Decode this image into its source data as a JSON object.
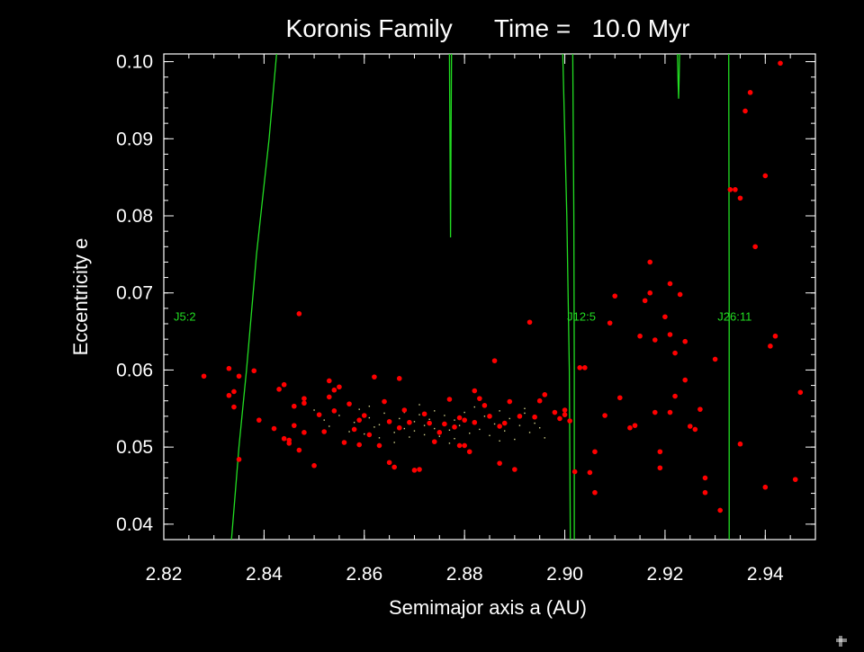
{
  "chart_data": {
    "type": "scatter",
    "title": "Koronis Family      Time =   10.0 Myr",
    "xlabel": "Semimajor axis a (AU)",
    "ylabel": "Eccentricity e",
    "xlim": [
      2.82,
      2.95
    ],
    "ylim": [
      0.038,
      0.101
    ],
    "xticks": [
      2.82,
      2.84,
      2.86,
      2.88,
      2.9,
      2.92,
      2.94
    ],
    "xtick_labels": [
      "2.82",
      "2.84",
      "2.86",
      "2.88",
      "2.90",
      "2.92",
      "2.94"
    ],
    "yticks": [
      0.04,
      0.05,
      0.06,
      0.07,
      0.08,
      0.09,
      0.1
    ],
    "ytick_labels": [
      "0.04",
      "0.05",
      "0.06",
      "0.07",
      "0.08",
      "0.09",
      "0.10"
    ],
    "grid": false,
    "colors": {
      "background": "#000000",
      "axes": "#ffffff",
      "points": "#ff0000",
      "cloud": "#d2d28c",
      "resonance": "#22dd22"
    },
    "series": [
      {
        "marker": "red-dot",
        "points": [
          [
            2.828,
            0.0592
          ],
          [
            2.833,
            0.0602
          ],
          [
            2.833,
            0.0567
          ],
          [
            2.834,
            0.0572
          ],
          [
            2.834,
            0.0552
          ],
          [
            2.835,
            0.0592
          ],
          [
            2.835,
            0.0484
          ],
          [
            2.838,
            0.0599
          ],
          [
            2.839,
            0.0535
          ],
          [
            2.842,
            0.0524
          ],
          [
            2.843,
            0.0575
          ],
          [
            2.844,
            0.0581
          ],
          [
            2.844,
            0.0511
          ],
          [
            2.845,
            0.0505
          ],
          [
            2.845,
            0.0509
          ],
          [
            2.846,
            0.0553
          ],
          [
            2.846,
            0.0528
          ],
          [
            2.847,
            0.0496
          ],
          [
            2.848,
            0.0557
          ],
          [
            2.848,
            0.0563
          ],
          [
            2.848,
            0.0519
          ],
          [
            2.847,
            0.0673
          ],
          [
            2.85,
            0.0476
          ],
          [
            2.851,
            0.0542
          ],
          [
            2.852,
            0.052
          ],
          [
            2.853,
            0.0586
          ],
          [
            2.853,
            0.0565
          ],
          [
            2.854,
            0.0574
          ],
          [
            2.854,
            0.0547
          ],
          [
            2.855,
            0.0578
          ],
          [
            2.856,
            0.0506
          ],
          [
            2.857,
            0.0556
          ],
          [
            2.858,
            0.0523
          ],
          [
            2.859,
            0.0503
          ],
          [
            2.859,
            0.0535
          ],
          [
            2.86,
            0.0541
          ],
          [
            2.861,
            0.0516
          ],
          [
            2.862,
            0.0591
          ],
          [
            2.863,
            0.0502
          ],
          [
            2.864,
            0.0559
          ],
          [
            2.865,
            0.0533
          ],
          [
            2.865,
            0.048
          ],
          [
            2.866,
            0.0474
          ],
          [
            2.867,
            0.0525
          ],
          [
            2.867,
            0.0589
          ],
          [
            2.868,
            0.0548
          ],
          [
            2.869,
            0.0532
          ],
          [
            2.87,
            0.047
          ],
          [
            2.871,
            0.0471
          ],
          [
            2.872,
            0.0543
          ],
          [
            2.873,
            0.0531
          ],
          [
            2.874,
            0.0507
          ],
          [
            2.875,
            0.0519
          ],
          [
            2.876,
            0.053
          ],
          [
            2.877,
            0.0562
          ],
          [
            2.878,
            0.0526
          ],
          [
            2.879,
            0.0502
          ],
          [
            2.879,
            0.0538
          ],
          [
            2.88,
            0.0502
          ],
          [
            2.88,
            0.0535
          ],
          [
            2.881,
            0.0494
          ],
          [
            2.882,
            0.0573
          ],
          [
            2.882,
            0.0532
          ],
          [
            2.883,
            0.0563
          ],
          [
            2.884,
            0.0554
          ],
          [
            2.885,
            0.054
          ],
          [
            2.886,
            0.0612
          ],
          [
            2.887,
            0.0527
          ],
          [
            2.887,
            0.0479
          ],
          [
            2.888,
            0.0531
          ],
          [
            2.889,
            0.0559
          ],
          [
            2.89,
            0.0471
          ],
          [
            2.891,
            0.054
          ],
          [
            2.893,
            0.0662
          ],
          [
            2.894,
            0.0539
          ],
          [
            2.895,
            0.056
          ],
          [
            2.896,
            0.0568
          ],
          [
            2.898,
            0.0545
          ],
          [
            2.899,
            0.0537
          ],
          [
            2.9,
            0.0542
          ],
          [
            2.9,
            0.0548
          ],
          [
            2.901,
            0.0534
          ],
          [
            2.902,
            0.0468
          ],
          [
            2.903,
            0.0603
          ],
          [
            2.904,
            0.0603
          ],
          [
            2.905,
            0.0467
          ],
          [
            2.906,
            0.0494
          ],
          [
            2.906,
            0.0441
          ],
          [
            2.908,
            0.0541
          ],
          [
            2.909,
            0.0661
          ],
          [
            2.91,
            0.0696
          ],
          [
            2.911,
            0.0564
          ],
          [
            2.913,
            0.0525
          ],
          [
            2.914,
            0.0528
          ],
          [
            2.915,
            0.0644
          ],
          [
            2.916,
            0.069
          ],
          [
            2.917,
            0.074
          ],
          [
            2.917,
            0.07
          ],
          [
            2.918,
            0.0639
          ],
          [
            2.918,
            0.0545
          ],
          [
            2.919,
            0.0494
          ],
          [
            2.919,
            0.0473
          ],
          [
            2.92,
            0.0669
          ],
          [
            2.921,
            0.0712
          ],
          [
            2.921,
            0.0646
          ],
          [
            2.921,
            0.0545
          ],
          [
            2.922,
            0.0566
          ],
          [
            2.922,
            0.0622
          ],
          [
            2.923,
            0.0698
          ],
          [
            2.924,
            0.0637
          ],
          [
            2.924,
            0.0587
          ],
          [
            2.925,
            0.0527
          ],
          [
            2.926,
            0.0523
          ],
          [
            2.927,
            0.0549
          ],
          [
            2.928,
            0.0441
          ],
          [
            2.928,
            0.046
          ],
          [
            2.93,
            0.0614
          ],
          [
            2.931,
            0.0418
          ],
          [
            2.933,
            0.0834
          ],
          [
            2.934,
            0.0834
          ],
          [
            2.935,
            0.0823
          ],
          [
            2.935,
            0.0504
          ],
          [
            2.936,
            0.0936
          ],
          [
            2.937,
            0.096
          ],
          [
            2.938,
            0.076
          ],
          [
            2.94,
            0.0852
          ],
          [
            2.94,
            0.0448
          ],
          [
            2.941,
            0.0631
          ],
          [
            2.942,
            0.0644
          ],
          [
            2.943,
            0.0998
          ],
          [
            2.946,
            0.0458
          ],
          [
            2.947,
            0.0571
          ]
        ]
      },
      {
        "marker": "cloud-dot",
        "points": [
          [
            2.85,
            0.0548
          ],
          [
            2.852,
            0.0535
          ],
          [
            2.853,
            0.0527
          ],
          [
            2.855,
            0.0541
          ],
          [
            2.857,
            0.052
          ],
          [
            2.858,
            0.0532
          ],
          [
            2.859,
            0.0549
          ],
          [
            2.86,
            0.0517
          ],
          [
            2.861,
            0.0538
          ],
          [
            2.862,
            0.0526
          ],
          [
            2.863,
            0.0512
          ],
          [
            2.864,
            0.0544
          ],
          [
            2.865,
            0.0531
          ],
          [
            2.866,
            0.0519
          ],
          [
            2.867,
            0.0537
          ],
          [
            2.868,
            0.0524
          ],
          [
            2.868,
            0.0545
          ],
          [
            2.869,
            0.0513
          ],
          [
            2.87,
            0.0533
          ],
          [
            2.87,
            0.0521
          ],
          [
            2.871,
            0.0542
          ],
          [
            2.872,
            0.0528
          ],
          [
            2.872,
            0.0516
          ],
          [
            2.873,
            0.0536
          ],
          [
            2.874,
            0.0524
          ],
          [
            2.874,
            0.0547
          ],
          [
            2.875,
            0.0514
          ],
          [
            2.876,
            0.0532
          ],
          [
            2.876,
            0.0541
          ],
          [
            2.877,
            0.0522
          ],
          [
            2.878,
            0.0535
          ],
          [
            2.878,
            0.0511
          ],
          [
            2.879,
            0.0528
          ],
          [
            2.88,
            0.0545
          ],
          [
            2.881,
            0.0518
          ],
          [
            2.882,
            0.0534
          ],
          [
            2.883,
            0.0523
          ],
          [
            2.884,
            0.054
          ],
          [
            2.885,
            0.0515
          ],
          [
            2.886,
            0.053
          ],
          [
            2.887,
            0.0547
          ],
          [
            2.888,
            0.0521
          ],
          [
            2.889,
            0.0537
          ],
          [
            2.89,
            0.051
          ],
          [
            2.891,
            0.0528
          ],
          [
            2.892,
            0.0544
          ],
          [
            2.893,
            0.0519
          ],
          [
            2.894,
            0.0531
          ],
          [
            2.895,
            0.0525
          ],
          [
            2.896,
            0.0512
          ],
          [
            2.856,
            0.0508
          ],
          [
            2.861,
            0.0553
          ],
          [
            2.866,
            0.0506
          ],
          [
            2.871,
            0.0555
          ],
          [
            2.877,
            0.0505
          ],
          [
            2.882,
            0.0552
          ],
          [
            2.887,
            0.0508
          ],
          [
            2.892,
            0.055
          ],
          [
            2.863,
            0.0529
          ],
          [
            2.879,
            0.0539
          ]
        ]
      }
    ],
    "resonance_lines": [
      {
        "label": "J5:2",
        "label_at": [
          2.82,
          0.067
        ],
        "path": [
          [
            2.8335,
            0.038
          ],
          [
            2.834,
            0.042
          ],
          [
            2.835,
            0.05
          ],
          [
            2.8365,
            0.06
          ],
          [
            2.8385,
            0.075
          ],
          [
            2.841,
            0.09
          ],
          [
            2.8425,
            0.101
          ]
        ]
      },
      {
        "label": "J12:5",
        "label_at": [
          2.8985,
          0.067
        ],
        "path": [
          [
            2.9011,
            0.038
          ],
          [
            2.9009,
            0.06
          ],
          [
            2.9004,
            0.08
          ],
          [
            2.8996,
            0.101
          ]
        ]
      },
      {
        "label": "",
        "path": [
          [
            2.9019,
            0.038
          ],
          [
            2.9019,
            0.06
          ],
          [
            2.9018,
            0.08
          ],
          [
            2.9016,
            0.101
          ]
        ]
      },
      {
        "label": "J26:11",
        "label_at": [
          2.9285,
          0.067
        ],
        "path": [
          [
            2.9328,
            0.038
          ],
          [
            2.9328,
            0.07
          ],
          [
            2.9327,
            0.101
          ]
        ]
      },
      {
        "label": "",
        "path": [
          [
            2.877,
            0.101
          ],
          [
            2.8771,
            0.089
          ],
          [
            2.8772,
            0.0772
          ],
          [
            2.8773,
            0.089
          ],
          [
            2.8774,
            0.101
          ]
        ]
      },
      {
        "label": "",
        "path": [
          [
            2.9225,
            0.101
          ],
          [
            2.9226,
            0.0975
          ],
          [
            2.9227,
            0.0952
          ],
          [
            2.9228,
            0.0975
          ],
          [
            2.9229,
            0.101
          ]
        ]
      }
    ]
  }
}
